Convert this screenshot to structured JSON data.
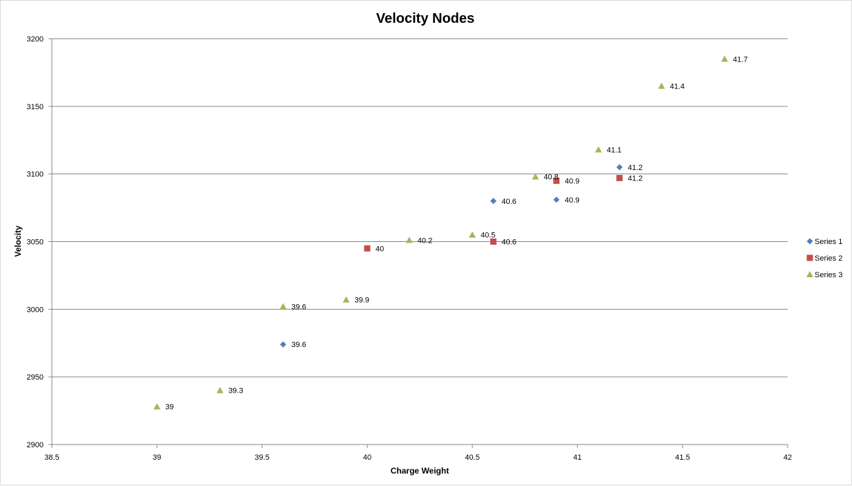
{
  "chart_data": {
    "type": "scatter",
    "title": "Velocity Nodes",
    "xlabel": "Charge Weight",
    "ylabel": "Velocity",
    "xlim": [
      38.5,
      42
    ],
    "ylim": [
      2900,
      3200
    ],
    "xticks": [
      38.5,
      39,
      39.5,
      40,
      40.5,
      41,
      41.5,
      42
    ],
    "yticks": [
      2900,
      2950,
      3000,
      3050,
      3100,
      3150,
      3200
    ],
    "grid": "horizontal major",
    "legend_position": "right",
    "series": [
      {
        "name": "Series 1",
        "marker": "diamond",
        "color": "#4f81bd",
        "points": [
          {
            "x": 39.6,
            "y": 2974,
            "label": "39.6"
          },
          {
            "x": 40.6,
            "y": 3080,
            "label": "40.6"
          },
          {
            "x": 40.9,
            "y": 3081,
            "label": "40.9"
          },
          {
            "x": 41.2,
            "y": 3105,
            "label": "41.2"
          }
        ]
      },
      {
        "name": "Series 2",
        "marker": "square",
        "color": "#c0504d",
        "points": [
          {
            "x": 40.0,
            "y": 3045,
            "label": "40"
          },
          {
            "x": 40.6,
            "y": 3050,
            "label": "40.6"
          },
          {
            "x": 40.9,
            "y": 3095,
            "label": "40.9"
          },
          {
            "x": 41.2,
            "y": 3097,
            "label": "41.2"
          }
        ]
      },
      {
        "name": "Series 3",
        "marker": "triangle",
        "color": "#9bbb59",
        "points": [
          {
            "x": 39.0,
            "y": 2928,
            "label": "39"
          },
          {
            "x": 39.3,
            "y": 2940,
            "label": "39.3"
          },
          {
            "x": 39.6,
            "y": 3002,
            "label": "39.6"
          },
          {
            "x": 39.9,
            "y": 3007,
            "label": "39.9"
          },
          {
            "x": 40.2,
            "y": 3051,
            "label": "40.2"
          },
          {
            "x": 40.5,
            "y": 3055,
            "label": "40.5"
          },
          {
            "x": 40.8,
            "y": 3098,
            "label": "40.8"
          },
          {
            "x": 41.1,
            "y": 3118,
            "label": "41.1"
          },
          {
            "x": 41.4,
            "y": 3165,
            "label": "41.4"
          },
          {
            "x": 41.7,
            "y": 3185,
            "label": "41.7"
          }
        ]
      }
    ]
  }
}
